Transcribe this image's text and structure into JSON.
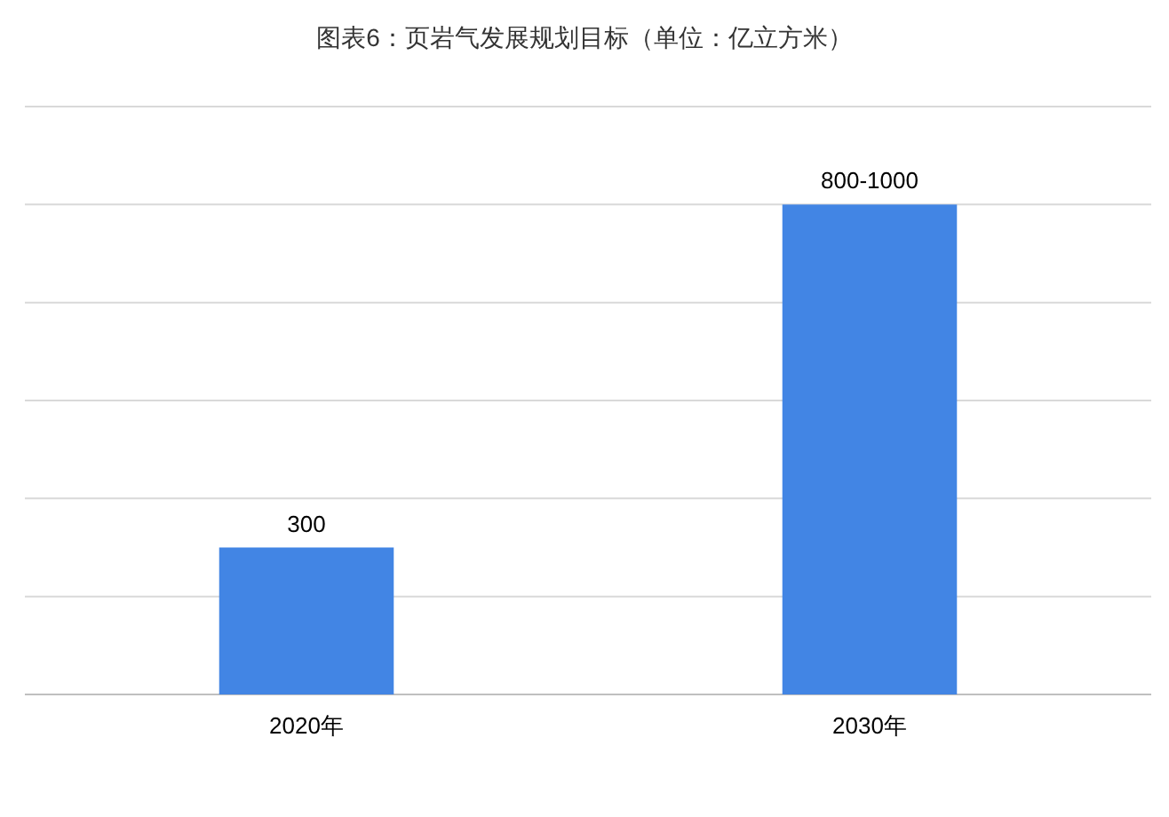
{
  "chart_data": {
    "type": "bar",
    "title": "图表6：页岩气发展规划目标（单位：亿立方米）",
    "categories": [
      "2020年",
      "2030年"
    ],
    "values": [
      300,
      1000
    ],
    "value_labels": [
      "300",
      "800-1000"
    ],
    "color": "#4285e4",
    "ylim": [
      0,
      1200
    ],
    "yticks": [
      {
        "value": 0,
        "label": null
      },
      {
        "value": 200,
        "label": null
      },
      {
        "value": 400,
        "label": null
      },
      {
        "value": 600,
        "label": null
      },
      {
        "value": 800,
        "label": null
      },
      {
        "value": 1000,
        "label": null
      },
      {
        "value": 1200,
        "label": null
      }
    ],
    "grid": "y"
  }
}
